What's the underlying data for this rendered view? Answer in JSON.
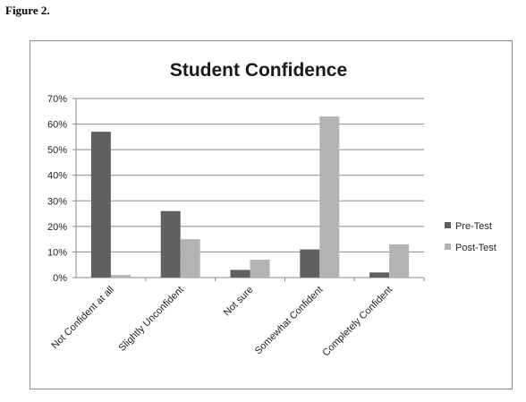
{
  "figure_label": "Figure 2.",
  "chart_data": {
    "type": "bar",
    "title": "Student Confidence",
    "xlabel": "",
    "ylabel": "",
    "categories": [
      "Not Confident at all",
      "Slightly Unconfident",
      "Not sure",
      "Somewhat Confident",
      "Completely Confident"
    ],
    "series": [
      {
        "name": "Pre-Test",
        "values": [
          57,
          26,
          3,
          11,
          2
        ],
        "color": "#606060"
      },
      {
        "name": "Post-Test",
        "values": [
          1,
          15,
          7,
          63,
          13
        ],
        "color": "#b3b3b3"
      }
    ],
    "ylim": [
      0,
      70
    ],
    "yticks": [
      "0%",
      "10%",
      "20%",
      "30%",
      "40%",
      "50%",
      "60%",
      "70%"
    ],
    "grid": true,
    "legend_position": "right"
  }
}
